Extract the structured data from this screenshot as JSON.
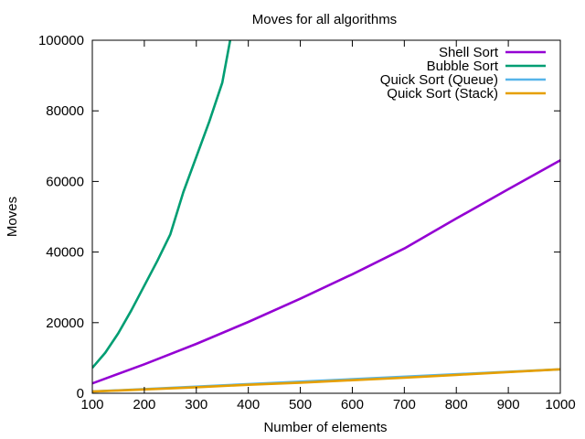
{
  "chart_data": {
    "type": "line",
    "title": "Moves for all algorithms",
    "xlabel": "Number of elements",
    "ylabel": "Moves",
    "xlim": [
      100,
      1000
    ],
    "ylim": [
      0,
      100000
    ],
    "xticks": [
      100,
      200,
      300,
      400,
      500,
      600,
      700,
      800,
      900,
      1000
    ],
    "yticks": [
      0,
      20000,
      40000,
      60000,
      80000,
      100000
    ],
    "legend_position": "top-right",
    "grid": false,
    "series": [
      {
        "name": "Shell Sort",
        "color": "#9400d3",
        "x": [
          100,
          200,
          300,
          400,
          500,
          600,
          700,
          800,
          900,
          1000
        ],
        "values": [
          2800,
          8200,
          14000,
          20200,
          26800,
          33700,
          41000,
          49500,
          57800,
          66000
        ]
      },
      {
        "name": "Bubble Sort",
        "color": "#009e73",
        "x": [
          100,
          125,
          150,
          175,
          200,
          225,
          250,
          275,
          300,
          325,
          350,
          365
        ],
        "values": [
          7200,
          11500,
          17000,
          23500,
          30500,
          37500,
          45000,
          57000,
          67000,
          77000,
          88000,
          100000
        ]
      },
      {
        "name": "Quick Sort (Queue)",
        "color": "#56b4e9",
        "x": [
          100,
          1000
        ],
        "values": [
          500,
          6800
        ]
      },
      {
        "name": "Quick Sort (Stack)",
        "color": "#e69f00",
        "x": [
          100,
          200,
          300,
          400,
          500,
          600,
          700,
          800,
          900,
          1000
        ],
        "values": [
          500,
          1100,
          1700,
          2400,
          3000,
          3700,
          4400,
          5200,
          6000,
          6800
        ]
      }
    ]
  }
}
